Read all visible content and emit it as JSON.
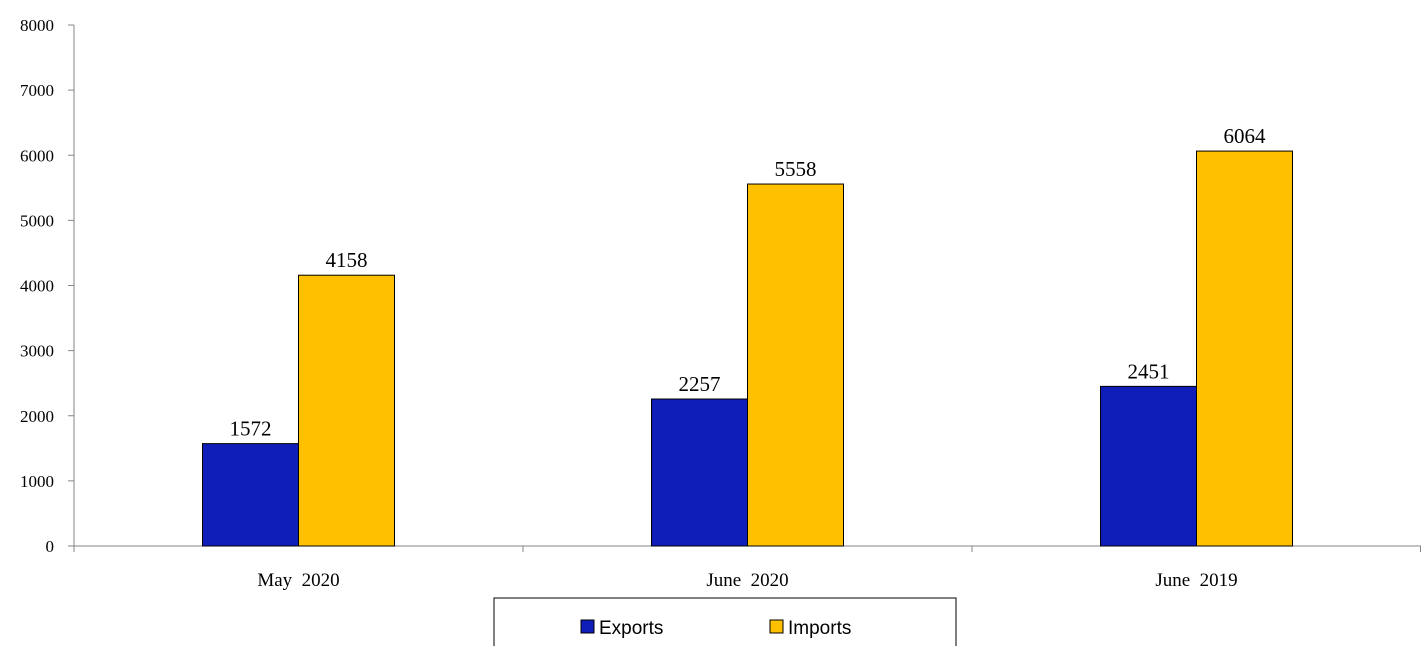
{
  "chart_data": {
    "type": "bar",
    "categories": [
      "May  2020",
      "June  2020",
      "June  2019"
    ],
    "series": [
      {
        "name": "Exports",
        "values": [
          1572,
          2257,
          2451
        ],
        "color": "#0F1EB8"
      },
      {
        "name": "Imports",
        "values": [
          4158,
          5558,
          6064
        ],
        "color": "#FFC000"
      }
    ],
    "ylim": [
      0,
      8000
    ],
    "yticks": [
      0,
      1000,
      2000,
      3000,
      4000,
      5000,
      6000,
      7000,
      8000
    ],
    "title": "",
    "xlabel": "",
    "ylabel": "",
    "grid": false,
    "legend": "bottom"
  }
}
